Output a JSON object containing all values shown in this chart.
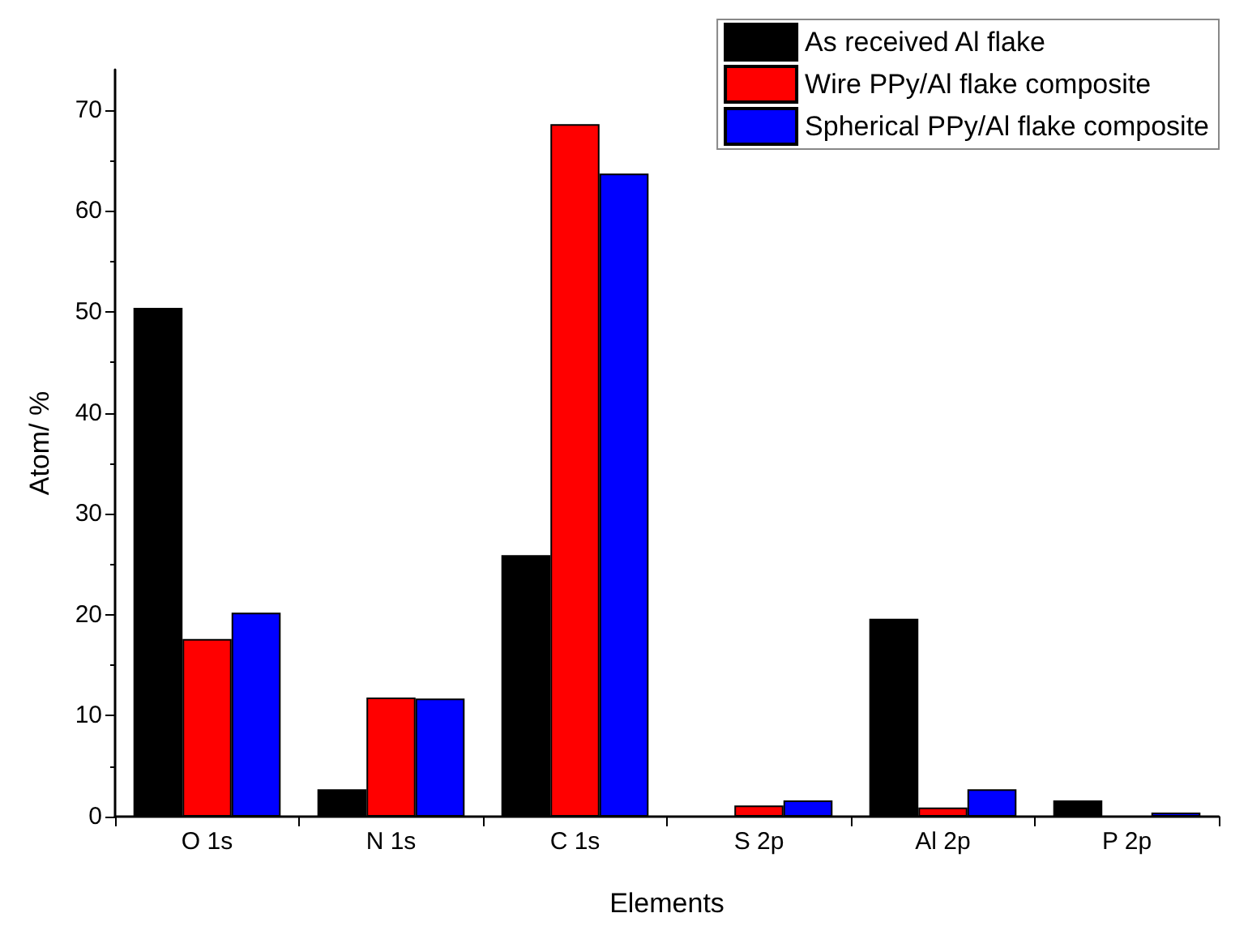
{
  "chart_data": {
    "type": "bar",
    "xlabel": "Elements",
    "ylabel": "Atom/ %",
    "categories": [
      "O 1s",
      "N 1s",
      "C 1s",
      "S 2p",
      "Al 2p",
      "P 2p"
    ],
    "series": [
      {
        "name": "As received Al flake",
        "color": "#000000",
        "values": [
          50.4,
          2.7,
          25.9,
          0,
          19.6,
          1.6
        ]
      },
      {
        "name": "Wire PPy/Al flake composite",
        "color": "#ff0000",
        "values": [
          17.6,
          11.8,
          68.6,
          1.1,
          0.9,
          0
        ]
      },
      {
        "name": "Spherical PPy/Al flake composite",
        "color": "#0000ff",
        "values": [
          20.2,
          11.7,
          63.7,
          1.6,
          2.7,
          0.4
        ]
      }
    ],
    "ylim": [
      0,
      74
    ],
    "yticks": [
      0,
      10,
      20,
      30,
      40,
      50,
      60,
      70
    ],
    "grid": false,
    "legend": "top right"
  }
}
